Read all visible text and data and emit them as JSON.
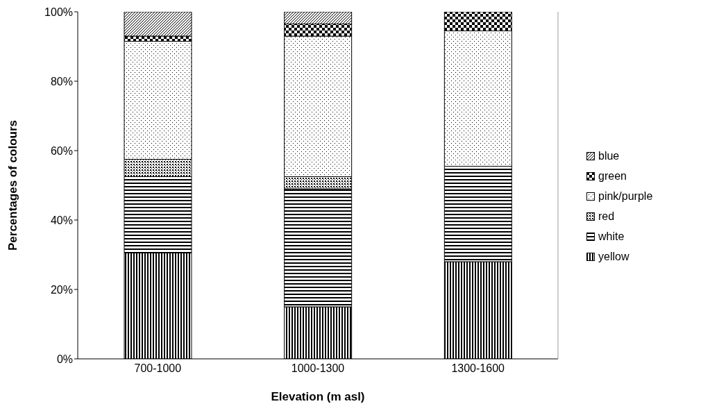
{
  "chart_data": {
    "type": "bar",
    "stacked": true,
    "xlabel": "Elevation (m asl)",
    "ylabel": "Percentages of colours",
    "categories": [
      "700-1000",
      "1000-1300",
      "1300-1600"
    ],
    "series": [
      {
        "name": "yellow",
        "color": "#000000",
        "values": [
          30.5,
          15,
          28
        ]
      },
      {
        "name": "white",
        "color": "#000000",
        "values": [
          22,
          34,
          27.5
        ]
      },
      {
        "name": "red",
        "color": "#000000",
        "values": [
          5,
          3.5,
          0
        ]
      },
      {
        "name": "pink/purple",
        "color": "#000000",
        "values": [
          34,
          40.5,
          39
        ]
      },
      {
        "name": "green",
        "color": "#000000",
        "values": [
          1.5,
          3.5,
          5.5
        ]
      },
      {
        "name": "blue",
        "color": "#000000",
        "values": [
          7,
          3.5,
          0
        ]
      }
    ],
    "ylim": [
      0,
      100
    ],
    "yticks": [
      {
        "value": 0,
        "label": "0%"
      },
      {
        "value": 20,
        "label": "20%"
      },
      {
        "value": 40,
        "label": "40%"
      },
      {
        "value": 60,
        "label": "60%"
      },
      {
        "value": 80,
        "label": "80%"
      },
      {
        "value": 100,
        "label": "100%"
      }
    ],
    "legend": "right"
  }
}
